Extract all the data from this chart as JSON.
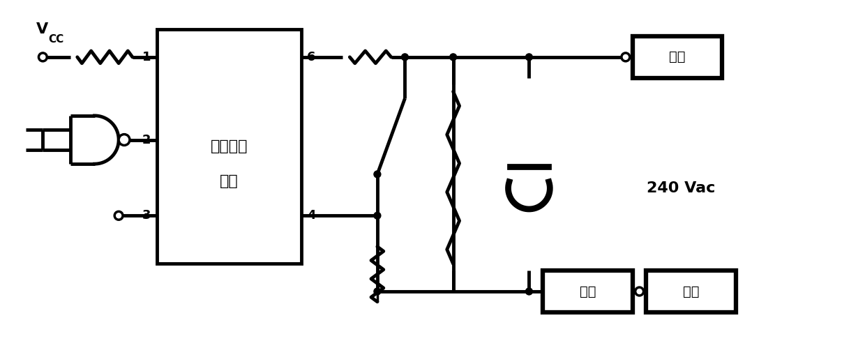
{
  "bg_color": "#ffffff",
  "line_color": "#000000",
  "lw": 2.5,
  "lw_thick": 3.5,
  "fig_width": 12.4,
  "fig_height": 4.92,
  "dpi": 100,
  "label_240": "240 Vac",
  "label_hx": "火线",
  "label_fz": "负载",
  "label_lx": "零线",
  "label_ic1": "低压控制",
  "label_ic2": "高压",
  "pin_labels": [
    "1",
    "2",
    "3",
    "4",
    "6"
  ]
}
